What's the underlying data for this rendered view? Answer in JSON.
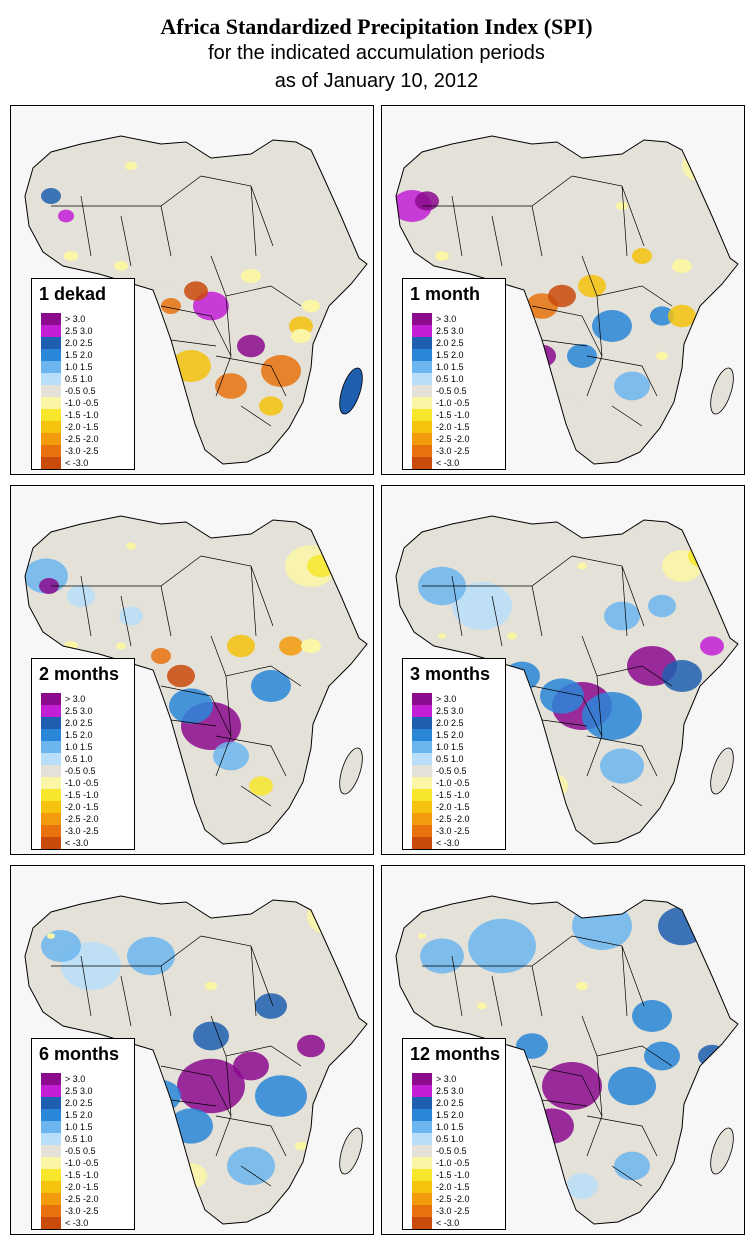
{
  "title": {
    "line1": "Africa Standardized Precipitation Index (SPI)",
    "line2": "for the indicated accumulation periods",
    "line3": "as of January 10, 2012"
  },
  "legend_classes": [
    {
      "label": "> 3.0",
      "color": "#8b0a8e"
    },
    {
      "label": "2.5  3.0",
      "color": "#c21fd6"
    },
    {
      "label": "2.0  2.5",
      "color": "#1f5fb0"
    },
    {
      "label": "1.5  2.0",
      "color": "#2a86d8"
    },
    {
      "label": "1.0  1.5",
      "color": "#6cb6ef"
    },
    {
      "label": "0.5  1.0",
      "color": "#b9defa"
    },
    {
      "label": "-0.5  0.5",
      "color": "#e4e1d8"
    },
    {
      "label": "-1.0 -0.5",
      "color": "#fbf6a6"
    },
    {
      "label": "-1.5 -1.0",
      "color": "#f7e62b"
    },
    {
      "label": "-2.0 -1.5",
      "color": "#f5c20d"
    },
    {
      "label": "-2.5 -2.0",
      "color": "#f39b0c"
    },
    {
      "label": "-3.0 -2.5",
      "color": "#e8720e"
    },
    {
      "label": "< -3.0",
      "color": "#c94a0b"
    }
  ],
  "panels": [
    {
      "label": "1 dekad"
    },
    {
      "label": "1 month"
    },
    {
      "label": "2 months"
    },
    {
      "label": "3 months"
    },
    {
      "label": "6 months"
    },
    {
      "label": "12 months"
    }
  ]
}
